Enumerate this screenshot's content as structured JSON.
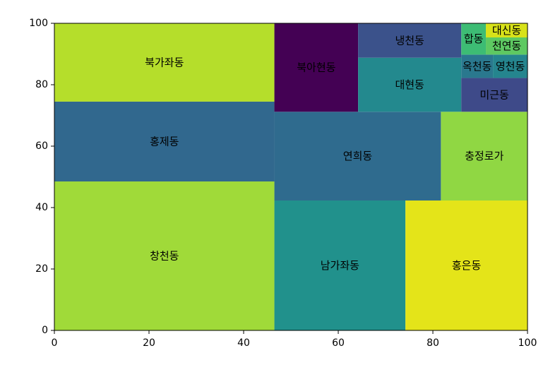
{
  "chart_data": {
    "type": "treemap",
    "xlim": [
      0,
      100
    ],
    "ylim": [
      0,
      100
    ],
    "x_ticks": [
      "0",
      "20",
      "40",
      "60",
      "80",
      "100"
    ],
    "y_ticks": [
      "0",
      "20",
      "40",
      "60",
      "80",
      "100"
    ],
    "cells": [
      {
        "label": "창천동",
        "x": 0,
        "y": 0,
        "w": 46.5,
        "h": 48.5,
        "color": "#a0da39"
      },
      {
        "label": "홍제동",
        "x": 0,
        "y": 48.5,
        "w": 46.5,
        "h": 26,
        "color": "#31688e"
      },
      {
        "label": "북가좌동",
        "x": 0,
        "y": 74.5,
        "w": 46.5,
        "h": 25.5,
        "color": "#b5de2b"
      },
      {
        "label": "남가좌동",
        "x": 46.5,
        "y": 0,
        "w": 27.7,
        "h": 42.3,
        "color": "#21918c"
      },
      {
        "label": "홍은동",
        "x": 74.2,
        "y": 0,
        "w": 25.8,
        "h": 42.3,
        "color": "#e4e419"
      },
      {
        "label": "연희동",
        "x": 46.5,
        "y": 42.3,
        "w": 35.2,
        "h": 28.9,
        "color": "#2f6b8e"
      },
      {
        "label": "충정로가",
        "x": 81.7,
        "y": 42.3,
        "w": 18.3,
        "h": 28.9,
        "color": "#90d743"
      },
      {
        "label": "북아현동",
        "x": 46.5,
        "y": 71.2,
        "w": 17.7,
        "h": 28.8,
        "color": "#440154"
      },
      {
        "label": "대현동",
        "x": 64.2,
        "y": 71.2,
        "w": 21.8,
        "h": 17.6,
        "color": "#23898e"
      },
      {
        "label": "냉천동",
        "x": 64.2,
        "y": 88.8,
        "w": 21.8,
        "h": 11.2,
        "color": "#3b528b"
      },
      {
        "label": "미근동",
        "x": 86,
        "y": 71.2,
        "w": 14,
        "h": 11,
        "color": "#3e4a89"
      },
      {
        "label": "옥천동",
        "x": 86,
        "y": 82.2,
        "w": 6.7,
        "h": 7.6,
        "color": "#2a788e"
      },
      {
        "label": "영천동",
        "x": 92.7,
        "y": 82.2,
        "w": 7.3,
        "h": 7.6,
        "color": "#25858e"
      },
      {
        "label": "합동",
        "x": 86,
        "y": 89.8,
        "w": 5.2,
        "h": 10.2,
        "color": "#3dbc74"
      },
      {
        "label": "천연동",
        "x": 91.2,
        "y": 89.8,
        "w": 8.8,
        "h": 5.6,
        "color": "#5ec962"
      },
      {
        "label": "대신동",
        "x": 91.2,
        "y": 95.4,
        "w": 8.8,
        "h": 4.6,
        "color": "#d8e219"
      }
    ]
  }
}
